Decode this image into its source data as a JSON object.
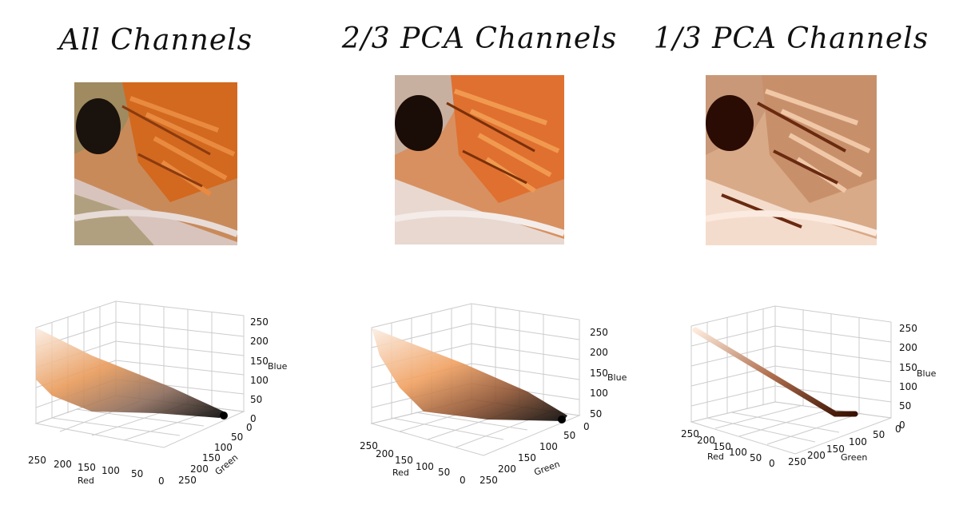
{
  "panels": [
    {
      "title": "All Channels"
    },
    {
      "title": "2/3 PCA Channels"
    },
    {
      "title": "1/3 PCA Channels"
    }
  ],
  "chart_data": [
    {
      "type": "scatter",
      "title": "All Channels",
      "xlabel": "Red",
      "ylabel": "Green",
      "zlabel": "Blue",
      "xlim": [
        0,
        255
      ],
      "ylim": [
        0,
        255
      ],
      "zlim": [
        0,
        255
      ],
      "x_ticks": [
        "250",
        "200",
        "150",
        "100",
        "50",
        "0"
      ],
      "y_ticks": [
        "250",
        "200",
        "150",
        "100",
        "50",
        "0"
      ],
      "z_ticks": [
        "0",
        "50",
        "100",
        "150",
        "200",
        "250"
      ],
      "grid": true,
      "point_colors": [
        "#fbe9dd",
        "#e8a070",
        "#d07a3a",
        "#a0704a",
        "#6a4a3a",
        "#2a1a14",
        "#000000"
      ]
    },
    {
      "type": "scatter",
      "title": "2/3 PCA Channels",
      "xlabel": "Red",
      "ylabel": "Green",
      "zlabel": "Blue",
      "xlim": [
        0,
        255
      ],
      "ylim": [
        0,
        255
      ],
      "zlim": [
        0,
        255
      ],
      "x_ticks": [
        "250",
        "200",
        "150",
        "100",
        "50",
        "0"
      ],
      "y_ticks": [
        "250",
        "200",
        "150",
        "100",
        "50",
        "0"
      ],
      "z_ticks": [
        "0",
        "50",
        "100",
        "150",
        "200",
        "250"
      ],
      "grid": true,
      "point_colors": [
        "#fbe9dd",
        "#f0b48a",
        "#d97a3c",
        "#a85a30",
        "#5a3020",
        "#1a0c08",
        "#000000"
      ]
    },
    {
      "type": "scatter",
      "title": "1/3 PCA Channels",
      "xlabel": "Red",
      "ylabel": "Green",
      "zlabel": "Blue",
      "xlim": [
        0,
        255
      ],
      "ylim": [
        0,
        255
      ],
      "zlim": [
        0,
        255
      ],
      "x_ticks": [
        "250",
        "200",
        "150",
        "100",
        "50",
        "0"
      ],
      "y_ticks": [
        "250",
        "200",
        "150",
        "100",
        "50",
        "0"
      ],
      "z_ticks": [
        "0",
        "50",
        "100",
        "150",
        "200",
        "250"
      ],
      "grid": true,
      "point_colors": [
        "#fdeadb",
        "#e0b090",
        "#b07050",
        "#7a3a20",
        "#3a1000"
      ]
    }
  ]
}
